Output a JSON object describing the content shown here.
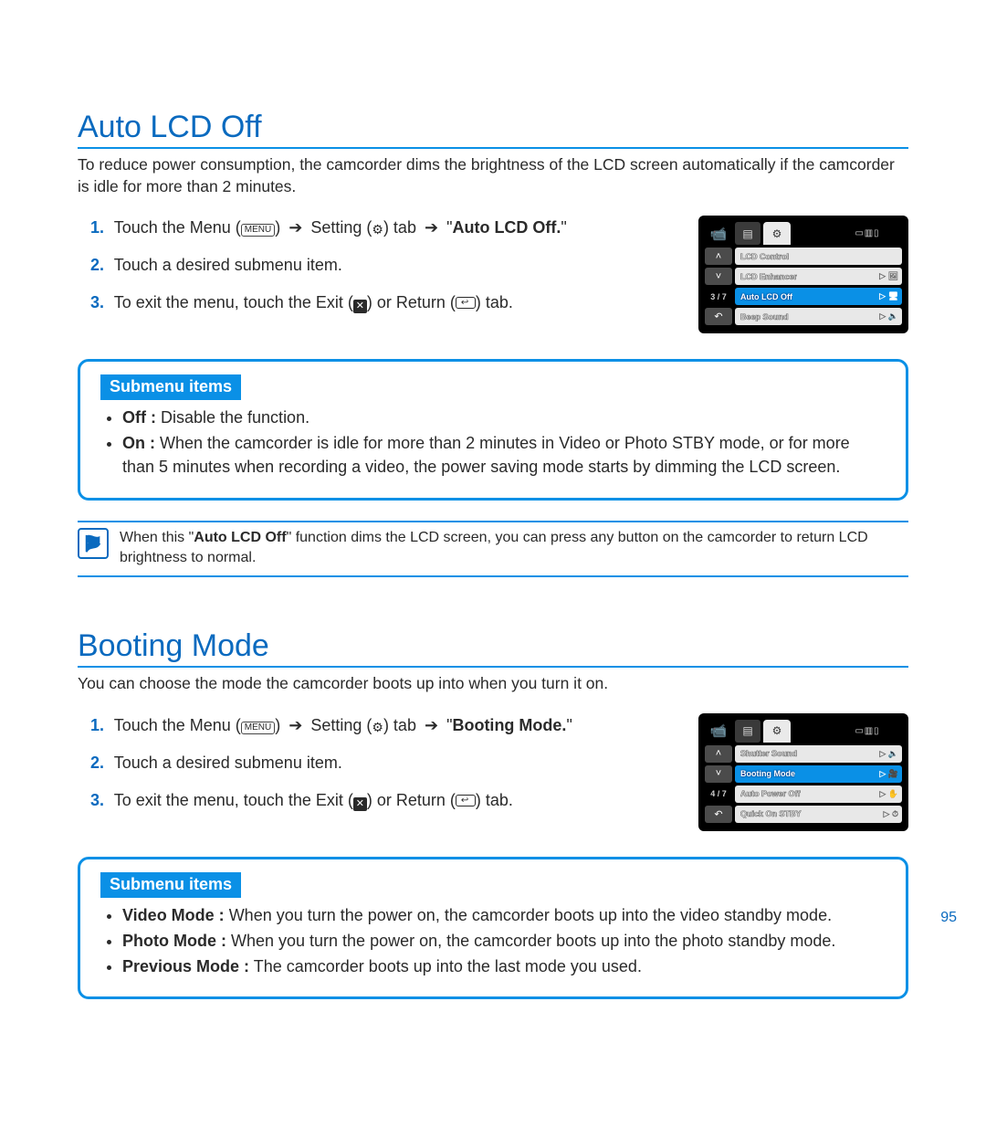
{
  "page_number": "95",
  "colors": {
    "accent": "#0a90e6",
    "heading": "#0a6abf",
    "body_text": "#2a2a2a",
    "lcd_selected": "#0a90e6",
    "lcd_bg": "#000000",
    "lcd_row_bg": "#e8e8e8"
  },
  "arrows": {
    "right": "➔"
  },
  "icons": {
    "menu_label": "MENU",
    "gear_glyph": "⚙",
    "exit_glyph": "✕",
    "return_glyph": "↩"
  },
  "section1": {
    "title": "Auto LCD Off",
    "intro": "To reduce power consumption, the camcorder dims the brightness of the LCD screen automatically if the camcorder is idle for more than 2 minutes.",
    "steps": {
      "s1_pre": "Touch the Menu (",
      "s1_mid1": ") ",
      "s1_mid2": " Setting (",
      "s1_mid3": ") tab ",
      "s1_mid4": " \"",
      "s1_target": "Auto LCD Off.",
      "s1_post": "\"",
      "s2": "Touch a desired submenu item.",
      "s3_pre": "To exit the menu, touch the Exit (",
      "s3_mid": ") or Return (",
      "s3_post": ") tab."
    },
    "submenu_tag": "Submenu items",
    "submenu": {
      "off_label": "Off :",
      "off_text": " Disable the function.",
      "on_label": "On :",
      "on_text": " When the camcorder is idle for more than 2 minutes in Video or Photo STBY mode, or for more than 5 minutes when recording a video, the power saving mode starts by dimming the LCD screen."
    },
    "note_pre": "When this \"",
    "note_bold": "Auto LCD Off",
    "note_post": "\" function dims the LCD screen, you can press any button on the camcorder to return LCD brightness to normal.",
    "lcd": {
      "page": "3 / 7",
      "rows": [
        {
          "text": "LCD Control",
          "selected": false,
          "icon": ""
        },
        {
          "text": "LCD Enhancer",
          "selected": false,
          "icon": "▷ 🖼"
        },
        {
          "text": "Auto LCD Off",
          "selected": true,
          "icon": "▷ 🖥"
        },
        {
          "text": "Beep Sound",
          "selected": false,
          "icon": "▷ 🔈"
        }
      ]
    }
  },
  "section2": {
    "title": "Booting Mode",
    "intro": "You can choose the mode the camcorder boots up into when you turn it on.",
    "steps": {
      "s1_pre": "Touch the Menu (",
      "s1_mid1": ") ",
      "s1_mid2": " Setting (",
      "s1_mid3": ") tab ",
      "s1_mid4": " \"",
      "s1_target": "Booting Mode.",
      "s1_post": "\"",
      "s2": "Touch a desired submenu item.",
      "s3_pre": "To exit the menu, touch the Exit (",
      "s3_mid": ") or Return (",
      "s3_post": ") tab."
    },
    "submenu_tag": "Submenu items",
    "submenu": {
      "video_label": "Video Mode :",
      "video_text": " When you turn the power on, the camcorder boots up into the video standby mode.",
      "photo_label": "Photo Mode :",
      "photo_text": " When you turn the power on, the camcorder boots up into the photo standby mode.",
      "prev_label": "Previous Mode :",
      "prev_text": " The camcorder boots up into the last mode you used."
    },
    "lcd": {
      "page": "4 / 7",
      "rows": [
        {
          "text": "Shutter Sound",
          "selected": false,
          "icon": "▷ 🔈"
        },
        {
          "text": "Booting Mode",
          "selected": true,
          "icon": "▷ 🎥"
        },
        {
          "text": "Auto Power Off",
          "selected": false,
          "icon": "▷ ✋"
        },
        {
          "text": "Quick On STBY",
          "selected": false,
          "icon": "▷ ⏱"
        }
      ]
    }
  }
}
